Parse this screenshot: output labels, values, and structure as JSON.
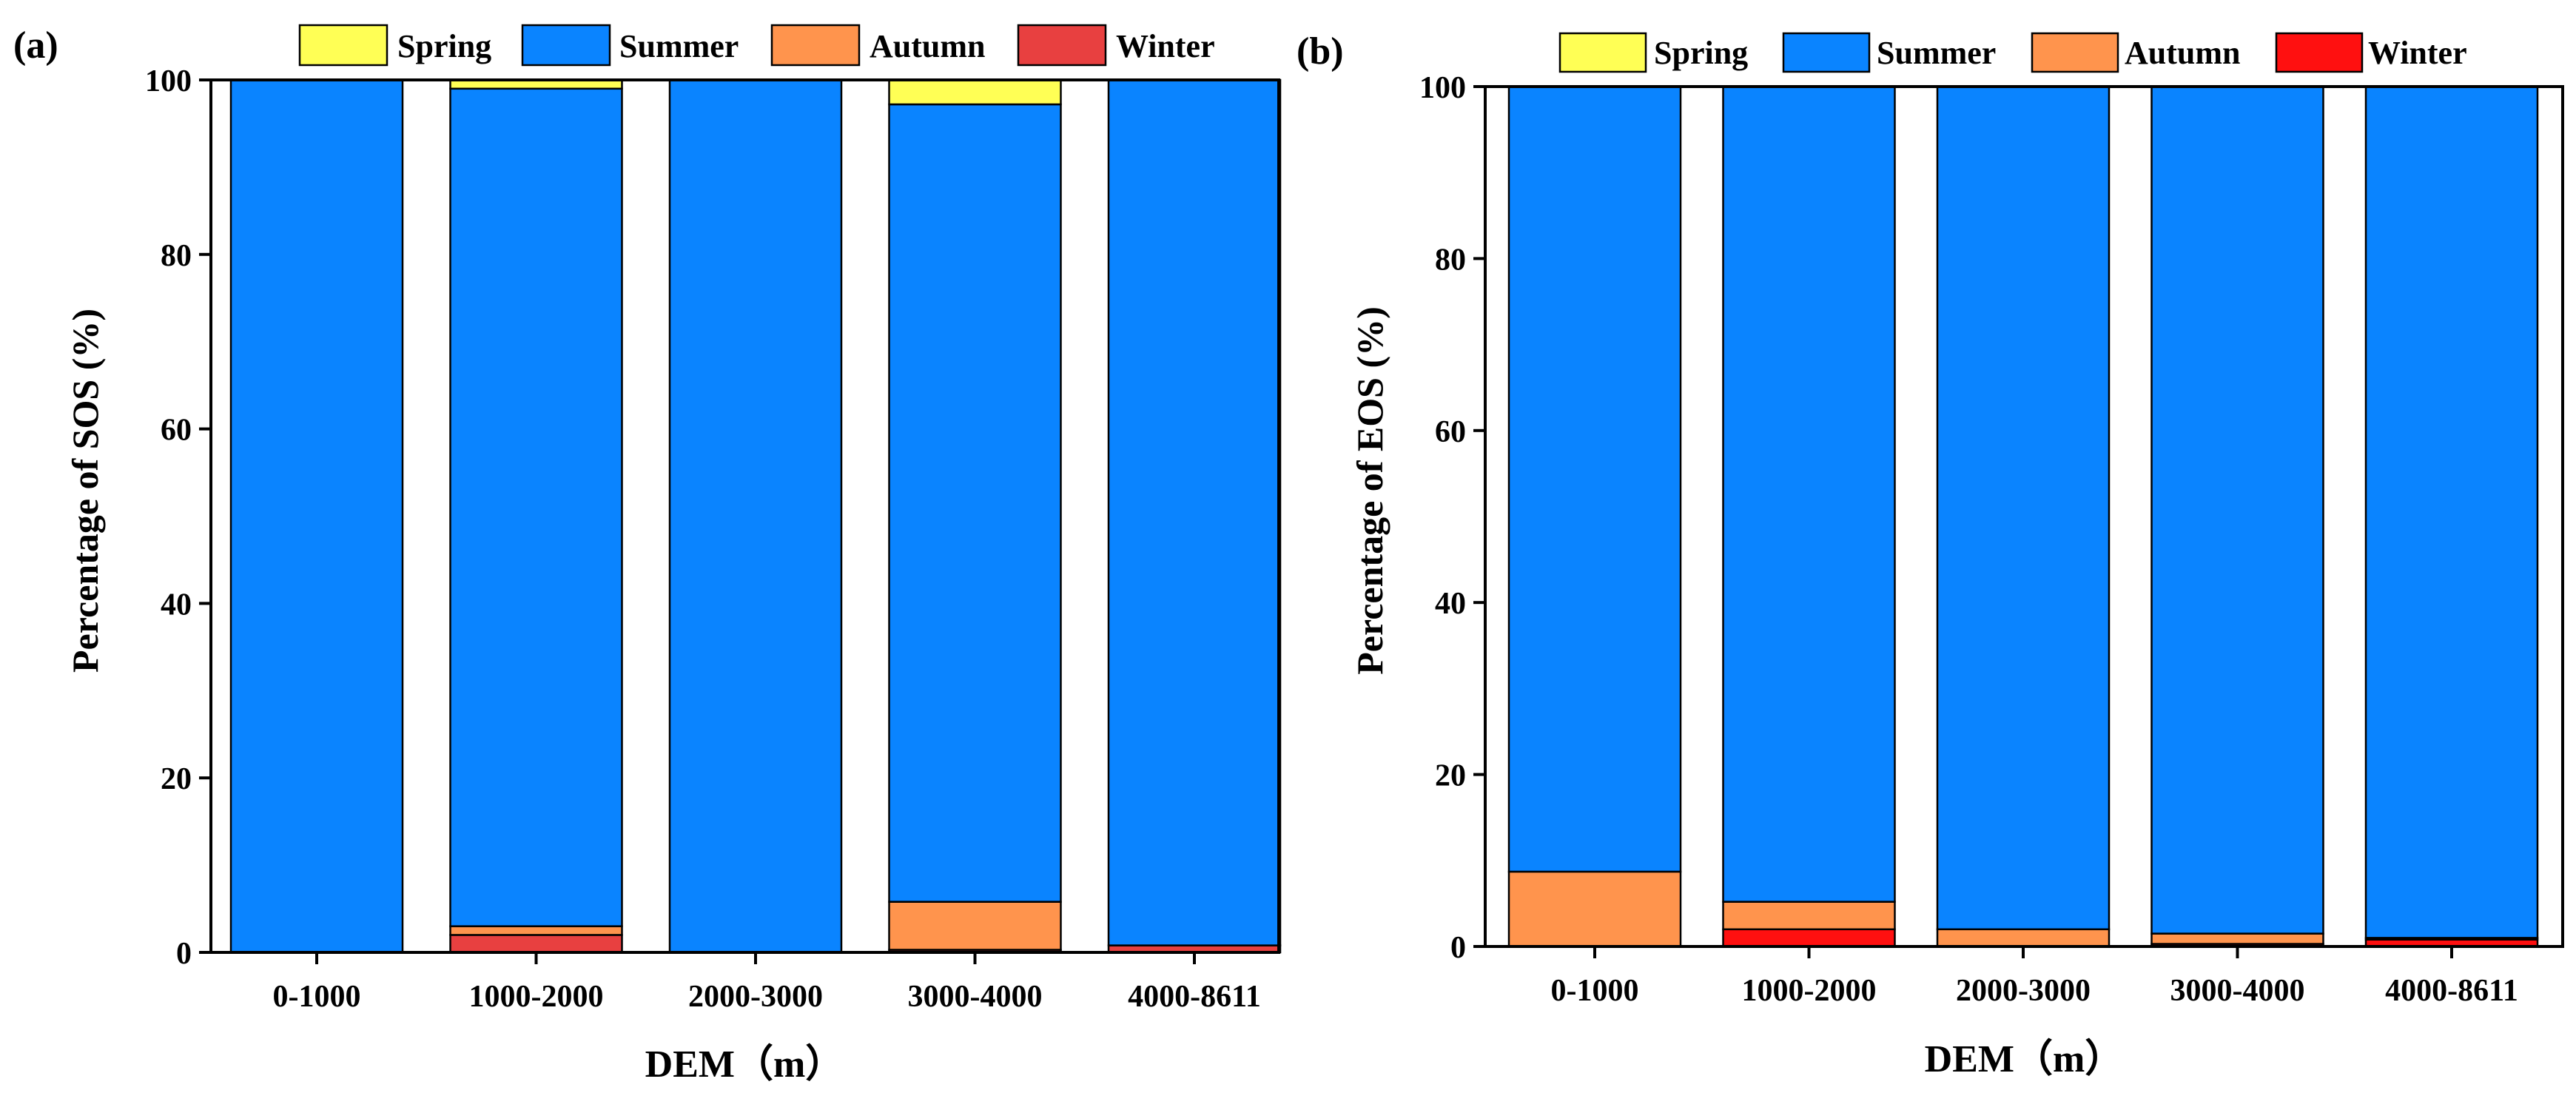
{
  "legend": {
    "spring": "Spring",
    "summer": "Summer",
    "autumn": "Autumn",
    "winter": "Winter"
  },
  "colors": {
    "spring": "#FFFF55",
    "summer": "#0A84FF",
    "autumn": "#FF944D",
    "winter_a": "#E84040",
    "winter_b": "#FF1010"
  },
  "chart_data": [
    {
      "type": "bar",
      "stacked": true,
      "panel": "(a)",
      "xlabel": "DEM（m）",
      "ylabel": "Percentage of SOS (%)",
      "ylim": [
        0,
        100
      ],
      "yticks": [
        0,
        20,
        40,
        60,
        80,
        100
      ],
      "categories": [
        "0-1000",
        "1000-2000",
        "2000-3000",
        "3000-4000",
        "4000-8611"
      ],
      "series": [
        {
          "name": "Winter",
          "values": [
            0,
            2,
            0,
            0.3,
            0.8
          ]
        },
        {
          "name": "Autumn",
          "values": [
            0,
            1,
            0,
            5.5,
            0
          ]
        },
        {
          "name": "Summer",
          "values": [
            100,
            96,
            100,
            91.4,
            99.2
          ]
        },
        {
          "name": "Spring",
          "values": [
            0,
            1,
            0,
            2.8,
            0
          ]
        }
      ],
      "legend_position": "top"
    },
    {
      "type": "bar",
      "stacked": true,
      "panel": "(b)",
      "xlabel": "DEM（m）",
      "ylabel": "Percentage of EOS (%)",
      "ylim": [
        0,
        100
      ],
      "yticks": [
        0,
        20,
        40,
        60,
        80,
        100
      ],
      "categories": [
        "0-1000",
        "1000-2000",
        "2000-3000",
        "3000-4000",
        "4000-8611"
      ],
      "series": [
        {
          "name": "Winter",
          "values": [
            0,
            2,
            0,
            0.3,
            0.8
          ]
        },
        {
          "name": "Autumn",
          "values": [
            8.7,
            3.2,
            2,
            1.2,
            0.2
          ]
        },
        {
          "name": "Summer",
          "values": [
            91.3,
            94.8,
            98,
            98.5,
            99
          ]
        },
        {
          "name": "Spring",
          "values": [
            0,
            0,
            0,
            0,
            0
          ]
        }
      ],
      "legend_position": "top"
    }
  ]
}
